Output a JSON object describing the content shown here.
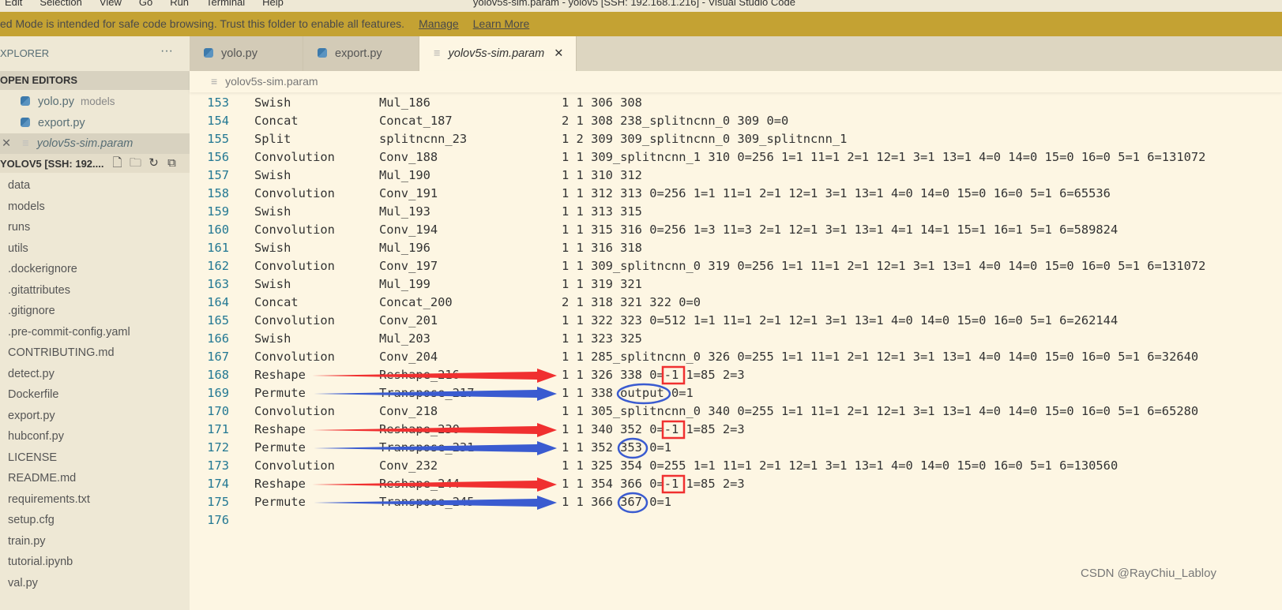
{
  "menubar": {
    "items": [
      "Edit",
      "Selection",
      "View",
      "Go",
      "Run",
      "Terminal",
      "Help"
    ],
    "title": "yolov5s-sim.param - yolov5 [SSH: 192.168.1.216] - Visual Studio Code"
  },
  "banner": {
    "text": "ed Mode is intended for safe code browsing. Trust this folder to enable all features.",
    "manage": "Manage",
    "learn_more": "Learn More",
    "color": "#c4a233"
  },
  "sidebar": {
    "explorer_title": "XPLORER",
    "more": "···",
    "open_editors_title": "OPEN EDITORS",
    "open_editors": [
      {
        "name": "yolo.py",
        "desc": "models",
        "icon": "python-icon"
      },
      {
        "name": "export.py",
        "desc": "",
        "icon": "python-icon"
      },
      {
        "name": "yolov5s-sim.param",
        "desc": "",
        "icon": "file-text-icon"
      }
    ],
    "folder_title": "YOLOV5 [SSH: 192....",
    "files": [
      "data",
      "models",
      "runs",
      "utils",
      ".dockerignore",
      ".gitattributes",
      ".gitignore",
      ".pre-commit-config.yaml",
      "CONTRIBUTING.md",
      "detect.py",
      "Dockerfile",
      "export.py",
      "hubconf.py",
      "LICENSE",
      "README.md",
      "requirements.txt",
      "setup.cfg",
      "train.py",
      "tutorial.ipynb",
      "val.py"
    ]
  },
  "tabs": [
    {
      "label": "yolo.py",
      "icon": "python-icon"
    },
    {
      "label": "export.py",
      "icon": "python-icon"
    },
    {
      "label": "yolov5s-sim.param",
      "icon": "file-text-icon",
      "active": true
    }
  ],
  "breadcrumb": "yolov5s-sim.param",
  "code": [
    [
      "153",
      "Swish",
      "Mul_186",
      "1 1 306 308"
    ],
    [
      "154",
      "Concat",
      "Concat_187",
      "2 1 308 238_splitncnn_0 309 0=0"
    ],
    [
      "155",
      "Split",
      "splitncnn_23",
      "1 2 309 309_splitncnn_0 309_splitncnn_1"
    ],
    [
      "156",
      "Convolution",
      "Conv_188",
      "1 1 309_splitncnn_1 310 0=256 1=1 11=1 2=1 12=1 3=1 13=1 4=0 14=0 15=0 16=0 5=1 6=131072"
    ],
    [
      "157",
      "Swish",
      "Mul_190",
      "1 1 310 312"
    ],
    [
      "158",
      "Convolution",
      "Conv_191",
      "1 1 312 313 0=256 1=1 11=1 2=1 12=1 3=1 13=1 4=0 14=0 15=0 16=0 5=1 6=65536"
    ],
    [
      "159",
      "Swish",
      "Mul_193",
      "1 1 313 315"
    ],
    [
      "160",
      "Convolution",
      "Conv_194",
      "1 1 315 316 0=256 1=3 11=3 2=1 12=1 3=1 13=1 4=1 14=1 15=1 16=1 5=1 6=589824"
    ],
    [
      "161",
      "Swish",
      "Mul_196",
      "1 1 316 318"
    ],
    [
      "162",
      "Convolution",
      "Conv_197",
      "1 1 309_splitncnn_0 319 0=256 1=1 11=1 2=1 12=1 3=1 13=1 4=0 14=0 15=0 16=0 5=1 6=131072"
    ],
    [
      "163",
      "Swish",
      "Mul_199",
      "1 1 319 321"
    ],
    [
      "164",
      "Concat",
      "Concat_200",
      "2 1 318 321 322 0=0"
    ],
    [
      "165",
      "Convolution",
      "Conv_201",
      "1 1 322 323 0=512 1=1 11=1 2=1 12=1 3=1 13=1 4=0 14=0 15=0 16=0 5=1 6=262144"
    ],
    [
      "166",
      "Swish",
      "Mul_203",
      "1 1 323 325"
    ],
    [
      "167",
      "Convolution",
      "Conv_204",
      "1 1 285_splitncnn_0 326 0=255 1=1 11=1 2=1 12=1 3=1 13=1 4=0 14=0 15=0 16=0 5=1 6=32640"
    ],
    [
      "168",
      "Reshape",
      "Reshape_216",
      "1 1 326 338 0=-1 1=85 2=3"
    ],
    [
      "169",
      "Permute",
      "Transpose_217",
      "1 1 338 output 0=1"
    ],
    [
      "170",
      "Convolution",
      "Conv_218",
      "1 1 305_splitncnn_0 340 0=255 1=1 11=1 2=1 12=1 3=1 13=1 4=0 14=0 15=0 16=0 5=1 6=65280"
    ],
    [
      "171",
      "Reshape",
      "Reshape_230",
      "1 1 340 352 0=-1 1=85 2=3"
    ],
    [
      "172",
      "Permute",
      "Transpose_231",
      "1 1 352 353 0=1"
    ],
    [
      "173",
      "Convolution",
      "Conv_232",
      "1 1 325 354 0=255 1=1 11=1 2=1 12=1 3=1 13=1 4=0 14=0 15=0 16=0 5=1 6=130560"
    ],
    [
      "174",
      "Reshape",
      "Reshape_244",
      "1 1 354 366 0=-1 1=85 2=3"
    ],
    [
      "175",
      "Permute",
      "Transpose_245",
      "1 1 366 367 0=1"
    ],
    [
      "176",
      "",
      "",
      ""
    ]
  ],
  "annotations": {
    "red": "#f03030",
    "blue": "#3a5bd0"
  },
  "watermark": "CSDN @RayChiu_Labloy"
}
